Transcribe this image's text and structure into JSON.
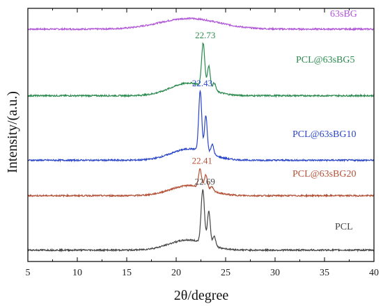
{
  "chart_data": {
    "type": "line",
    "xlabel": "2θ/degree",
    "ylabel": "Intensity/(a.u.)",
    "xlim": [
      5,
      40
    ],
    "x_ticks": [
      5,
      10,
      15,
      20,
      25,
      30,
      35,
      40
    ],
    "y_ticks_shown": false,
    "grid": false,
    "legend": "inline labels on right",
    "series": [
      {
        "name": "63sBG",
        "color": "#b055d8",
        "baseline": 0.918,
        "peaks": [
          {
            "x": 21.3,
            "h": 0.042,
            "w": 3.0
          }
        ],
        "peak_label": null
      },
      {
        "name": "PCL@63sBG5",
        "color": "#2a8a4e",
        "baseline": 0.655,
        "peaks": [
          {
            "x": 21.3,
            "h": 0.05,
            "w": 1.9
          },
          {
            "x": 22.73,
            "h": 0.17,
            "w": 0.16
          },
          {
            "x": 23.3,
            "h": 0.09,
            "w": 0.14
          },
          {
            "x": 23.85,
            "h": 0.03,
            "w": 0.15
          }
        ],
        "peak_label": "22.73"
      },
      {
        "name": "PCL@63sBG10",
        "color": "#2a45c8",
        "baseline": 0.4,
        "peaks": [
          {
            "x": 21.4,
            "h": 0.045,
            "w": 1.9
          },
          {
            "x": 22.43,
            "h": 0.235,
            "w": 0.15
          },
          {
            "x": 23.0,
            "h": 0.145,
            "w": 0.14
          },
          {
            "x": 23.65,
            "h": 0.04,
            "w": 0.15
          }
        ],
        "peak_label": "22.43"
      },
      {
        "name": "PCL@63sBG20",
        "color": "#b35036",
        "baseline": 0.26,
        "peaks": [
          {
            "x": 21.3,
            "h": 0.04,
            "w": 1.9
          },
          {
            "x": 22.41,
            "h": 0.07,
            "w": 0.15
          },
          {
            "x": 23.0,
            "h": 0.055,
            "w": 0.16
          },
          {
            "x": 23.6,
            "h": 0.015,
            "w": 0.15
          }
        ],
        "peak_label": "22.41"
      },
      {
        "name": "PCL",
        "color": "#444444",
        "baseline": 0.045,
        "peaks": [
          {
            "x": 21.2,
            "h": 0.04,
            "w": 1.9
          },
          {
            "x": 22.69,
            "h": 0.21,
            "w": 0.17
          },
          {
            "x": 23.3,
            "h": 0.13,
            "w": 0.15
          },
          {
            "x": 23.85,
            "h": 0.04,
            "w": 0.15
          }
        ],
        "peak_label": "22.69"
      }
    ]
  }
}
